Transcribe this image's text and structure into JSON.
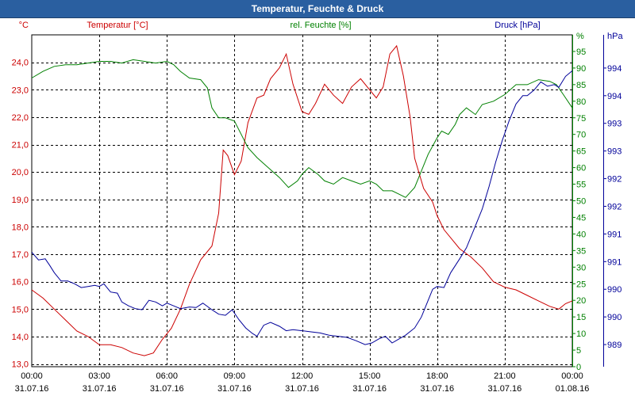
{
  "window": {
    "title": "Temperatur, Feuchte & Druck"
  },
  "chart_data": {
    "type": "line",
    "title": "Temperatur, Feuchte & Druck",
    "grid": true,
    "x_ticks": [
      {
        "t": 0,
        "time": "00:00",
        "date": "31.07.16"
      },
      {
        "t": 3,
        "time": "03:00",
        "date": "31.07.16"
      },
      {
        "t": 6,
        "time": "06:00",
        "date": "31.07.16"
      },
      {
        "t": 9,
        "time": "09:00",
        "date": "31.07.16"
      },
      {
        "t": 12,
        "time": "12:00",
        "date": "31.07.16"
      },
      {
        "t": 15,
        "time": "15:00",
        "date": "31.07.16"
      },
      {
        "t": 18,
        "time": "18:00",
        "date": "31.07.16"
      },
      {
        "t": 21,
        "time": "21:00",
        "date": "31.07.16"
      },
      {
        "t": 24,
        "time": "00:00",
        "date": "01.08.16"
      }
    ],
    "xlim": [
      0,
      24
    ],
    "axes": {
      "temperature": {
        "label": "Temperatur [°C]",
        "unit": "°C",
        "range": [
          12.9,
          25.0
        ],
        "color": "#cc0000",
        "ticks": [
          "13,0",
          "14,0",
          "15,0",
          "16,0",
          "17,0",
          "18,0",
          "19,0",
          "20,0",
          "21,0",
          "22,0",
          "23,0",
          "24,0"
        ],
        "tick_values": [
          13,
          14,
          15,
          16,
          17,
          18,
          19,
          20,
          21,
          22,
          23,
          24
        ]
      },
      "humidity": {
        "label": "rel. Feuchte [%]",
        "unit": "%",
        "range": [
          0,
          100
        ],
        "color": "#008000",
        "ticks": [
          "0",
          "5",
          "10",
          "15",
          "20",
          "25",
          "30",
          "35",
          "40",
          "45",
          "50",
          "55",
          "60",
          "65",
          "70",
          "75",
          "80",
          "85",
          "90",
          "95"
        ],
        "tick_values": [
          0,
          5,
          10,
          15,
          20,
          25,
          30,
          35,
          40,
          45,
          50,
          55,
          60,
          65,
          70,
          75,
          80,
          85,
          90,
          95
        ]
      },
      "pressure": {
        "label": "Druck [hPa]",
        "unit": "hPa",
        "range": [
          988.85,
          994.85
        ],
        "color": "#000099",
        "ticks": [
          "989",
          "990",
          "990",
          "991",
          "991",
          "992",
          "992",
          "993",
          "993",
          "994",
          "994"
        ],
        "tick_values": [
          989.25,
          989.75,
          990.25,
          990.75,
          991.25,
          991.75,
          992.25,
          992.75,
          993.25,
          993.75,
          994.25
        ]
      }
    },
    "series": [
      {
        "name": "Temperatur",
        "axis": "temperature",
        "color": "#cc0000",
        "points": [
          [
            0,
            15.7
          ],
          [
            0.5,
            15.4
          ],
          [
            1,
            15.0
          ],
          [
            1.5,
            14.6
          ],
          [
            2,
            14.2
          ],
          [
            2.5,
            14.0
          ],
          [
            3,
            13.7
          ],
          [
            3.5,
            13.7
          ],
          [
            4,
            13.6
          ],
          [
            4.5,
            13.4
          ],
          [
            5,
            13.3
          ],
          [
            5.4,
            13.4
          ],
          [
            5.8,
            13.9
          ],
          [
            6.2,
            14.3
          ],
          [
            6.6,
            15.0
          ],
          [
            7,
            15.9
          ],
          [
            7.5,
            16.8
          ],
          [
            8,
            17.3
          ],
          [
            8.3,
            18.5
          ],
          [
            8.5,
            20.8
          ],
          [
            8.7,
            20.6
          ],
          [
            9,
            19.9
          ],
          [
            9.3,
            20.4
          ],
          [
            9.6,
            21.8
          ],
          [
            10,
            22.7
          ],
          [
            10.3,
            22.8
          ],
          [
            10.6,
            23.4
          ],
          [
            11,
            23.8
          ],
          [
            11.3,
            24.3
          ],
          [
            11.6,
            23.2
          ],
          [
            12,
            22.2
          ],
          [
            12.3,
            22.1
          ],
          [
            12.6,
            22.5
          ],
          [
            13,
            23.2
          ],
          [
            13.4,
            22.8
          ],
          [
            13.8,
            22.5
          ],
          [
            14.2,
            23.1
          ],
          [
            14.6,
            23.4
          ],
          [
            15,
            23.0
          ],
          [
            15.3,
            22.7
          ],
          [
            15.6,
            23.1
          ],
          [
            15.9,
            24.3
          ],
          [
            16.2,
            24.6
          ],
          [
            16.5,
            23.5
          ],
          [
            16.8,
            22.0
          ],
          [
            17,
            20.5
          ],
          [
            17.4,
            19.4
          ],
          [
            17.8,
            18.9
          ],
          [
            18,
            18.4
          ],
          [
            18.3,
            17.9
          ],
          [
            18.7,
            17.5
          ],
          [
            19,
            17.2
          ],
          [
            19.5,
            16.9
          ],
          [
            20,
            16.5
          ],
          [
            20.5,
            16.0
          ],
          [
            21,
            15.8
          ],
          [
            21.5,
            15.7
          ],
          [
            22,
            15.5
          ],
          [
            22.5,
            15.3
          ],
          [
            23,
            15.1
          ],
          [
            23.4,
            15.0
          ],
          [
            23.7,
            15.2
          ],
          [
            24,
            15.3
          ]
        ]
      },
      {
        "name": "rel. Feuchte",
        "axis": "humidity",
        "color": "#008000",
        "points": [
          [
            0,
            87
          ],
          [
            0.5,
            89
          ],
          [
            1,
            90.5
          ],
          [
            1.5,
            91
          ],
          [
            2,
            91
          ],
          [
            2.5,
            91.5
          ],
          [
            3,
            92
          ],
          [
            3.5,
            92
          ],
          [
            4,
            91.5
          ],
          [
            4.5,
            92.5
          ],
          [
            5,
            92
          ],
          [
            5.5,
            91.5
          ],
          [
            6,
            92
          ],
          [
            6.3,
            91
          ],
          [
            6.6,
            89
          ],
          [
            7,
            87
          ],
          [
            7.5,
            86.5
          ],
          [
            7.8,
            84
          ],
          [
            8,
            78
          ],
          [
            8.3,
            75
          ],
          [
            8.6,
            75
          ],
          [
            9,
            74
          ],
          [
            9.3,
            70
          ],
          [
            9.6,
            66
          ],
          [
            10,
            63
          ],
          [
            10.5,
            60
          ],
          [
            11,
            57
          ],
          [
            11.4,
            54
          ],
          [
            11.8,
            56
          ],
          [
            12,
            58
          ],
          [
            12.3,
            60
          ],
          [
            12.7,
            58
          ],
          [
            13,
            56
          ],
          [
            13.4,
            55
          ],
          [
            13.8,
            57
          ],
          [
            14.2,
            56
          ],
          [
            14.6,
            55
          ],
          [
            15,
            56
          ],
          [
            15.3,
            55
          ],
          [
            15.6,
            53
          ],
          [
            16,
            53
          ],
          [
            16.3,
            52
          ],
          [
            16.6,
            51
          ],
          [
            17,
            54
          ],
          [
            17.3,
            59
          ],
          [
            17.6,
            64
          ],
          [
            18,
            69
          ],
          [
            18.2,
            71
          ],
          [
            18.5,
            70
          ],
          [
            18.8,
            73
          ],
          [
            19,
            76
          ],
          [
            19.3,
            78
          ],
          [
            19.7,
            76
          ],
          [
            20,
            79
          ],
          [
            20.5,
            80
          ],
          [
            21,
            82
          ],
          [
            21.5,
            85
          ],
          [
            22,
            85
          ],
          [
            22.5,
            86.5
          ],
          [
            23,
            86
          ],
          [
            23.3,
            85
          ],
          [
            23.6,
            82
          ],
          [
            24,
            78
          ]
        ]
      },
      {
        "name": "Druck",
        "axis": "pressure",
        "color": "#000099",
        "points": [
          [
            0,
            990.92
          ],
          [
            0.3,
            990.78
          ],
          [
            0.6,
            990.8
          ],
          [
            0.8,
            990.68
          ],
          [
            1,
            990.55
          ],
          [
            1.3,
            990.4
          ],
          [
            1.6,
            990.4
          ],
          [
            1.9,
            990.35
          ],
          [
            2.2,
            990.28
          ],
          [
            2.5,
            990.3
          ],
          [
            2.8,
            990.32
          ],
          [
            3,
            990.3
          ],
          [
            3.2,
            990.35
          ],
          [
            3.5,
            990.2
          ],
          [
            3.8,
            990.18
          ],
          [
            4,
            990.02
          ],
          [
            4.3,
            989.95
          ],
          [
            4.6,
            989.9
          ],
          [
            4.9,
            989.88
          ],
          [
            5.2,
            990.05
          ],
          [
            5.5,
            990.02
          ],
          [
            5.8,
            989.95
          ],
          [
            6,
            990.0
          ],
          [
            6.3,
            989.95
          ],
          [
            6.6,
            989.9
          ],
          [
            7,
            989.93
          ],
          [
            7.3,
            989.92
          ],
          [
            7.6,
            990.0
          ],
          [
            8,
            989.88
          ],
          [
            8.3,
            989.8
          ],
          [
            8.6,
            989.78
          ],
          [
            8.9,
            989.88
          ],
          [
            9.2,
            989.7
          ],
          [
            9.5,
            989.55
          ],
          [
            9.8,
            989.45
          ],
          [
            10,
            989.4
          ],
          [
            10.3,
            989.6
          ],
          [
            10.6,
            989.65
          ],
          [
            11,
            989.58
          ],
          [
            11.3,
            989.5
          ],
          [
            11.6,
            989.52
          ],
          [
            12,
            989.5
          ],
          [
            12.4,
            989.48
          ],
          [
            12.8,
            989.46
          ],
          [
            13.2,
            989.42
          ],
          [
            13.6,
            989.4
          ],
          [
            14,
            989.38
          ],
          [
            14.4,
            989.32
          ],
          [
            14.8,
            989.25
          ],
          [
            15.1,
            989.28
          ],
          [
            15.4,
            989.35
          ],
          [
            15.7,
            989.4
          ],
          [
            16,
            989.28
          ],
          [
            16.3,
            989.35
          ],
          [
            16.6,
            989.42
          ],
          [
            17,
            989.55
          ],
          [
            17.3,
            989.75
          ],
          [
            17.6,
            990.05
          ],
          [
            17.8,
            990.25
          ],
          [
            18,
            990.3
          ],
          [
            18.3,
            990.28
          ],
          [
            18.6,
            990.55
          ],
          [
            19,
            990.8
          ],
          [
            19.3,
            991.0
          ],
          [
            19.6,
            991.3
          ],
          [
            20,
            991.7
          ],
          [
            20.3,
            992.1
          ],
          [
            20.6,
            992.55
          ],
          [
            20.9,
            992.95
          ],
          [
            21.2,
            993.3
          ],
          [
            21.5,
            993.6
          ],
          [
            21.8,
            993.75
          ],
          [
            22,
            993.75
          ],
          [
            22.3,
            993.85
          ],
          [
            22.6,
            994.0
          ],
          [
            22.9,
            993.92
          ],
          [
            23.2,
            993.95
          ],
          [
            23.4,
            993.9
          ],
          [
            23.7,
            994.1
          ],
          [
            24,
            994.2
          ]
        ]
      }
    ]
  }
}
